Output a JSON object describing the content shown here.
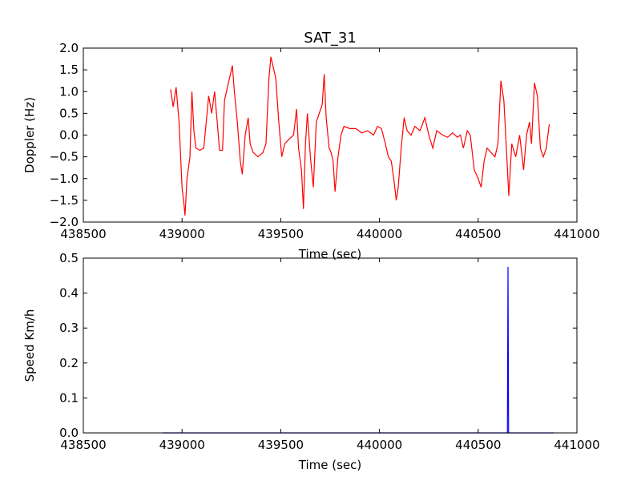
{
  "chart_data": [
    {
      "type": "line",
      "title": "SAT_31",
      "xlabel": "Time (sec)",
      "ylabel": "Doppler (Hz)",
      "color": "#ff0000",
      "x": [
        438942,
        438955,
        438970,
        438985,
        439000,
        439010,
        439015,
        439025,
        439040,
        439050,
        439060,
        439070,
        439090,
        439110,
        439135,
        439150,
        439165,
        439180,
        439190,
        439205,
        439215,
        439230,
        439245,
        439255,
        439265,
        439280,
        439295,
        439305,
        439320,
        439335,
        439345,
        439360,
        439385,
        439410,
        439425,
        439440,
        439450,
        439460,
        439475,
        439490,
        439505,
        439520,
        439540,
        439565,
        439580,
        439590,
        439605,
        439615,
        439625,
        439635,
        439650,
        439665,
        439680,
        439695,
        439710,
        439720,
        439730,
        439745,
        439755,
        439765,
        439775,
        439790,
        439805,
        439820,
        439850,
        439880,
        439910,
        439940,
        439970,
        439990,
        440010,
        440030,
        440045,
        440060,
        440075,
        440085,
        440095,
        440110,
        440125,
        440140,
        440160,
        440180,
        440205,
        440230,
        440250,
        440270,
        440290,
        440320,
        440345,
        440370,
        440395,
        440410,
        440425,
        440445,
        440460,
        440480,
        440500,
        440515,
        440530,
        440545,
        440565,
        440585,
        440600,
        440615,
        440630,
        440645,
        440655,
        440670,
        440690,
        440710,
        440730,
        440745,
        440760,
        440770,
        440785,
        440800,
        440815,
        440830,
        440845,
        440860
      ],
      "values": [
        1.05,
        0.65,
        1.1,
        0.3,
        -1.2,
        -1.6,
        -1.85,
        -1.0,
        -0.5,
        1.0,
        0.1,
        -0.3,
        -0.35,
        -0.3,
        0.9,
        0.5,
        1.0,
        0.2,
        -0.35,
        -0.35,
        0.8,
        1.1,
        1.4,
        1.6,
        1.0,
        0.3,
        -0.6,
        -0.9,
        0.0,
        0.4,
        -0.2,
        -0.4,
        -0.5,
        -0.4,
        -0.2,
        1.3,
        1.8,
        1.6,
        1.3,
        0.3,
        -0.5,
        -0.2,
        -0.1,
        0.0,
        0.6,
        -0.3,
        -0.8,
        -1.7,
        -0.2,
        0.5,
        -0.5,
        -1.2,
        0.3,
        0.5,
        0.7,
        1.4,
        0.4,
        -0.3,
        -0.4,
        -0.6,
        -1.3,
        -0.5,
        0.0,
        0.2,
        0.15,
        0.15,
        0.05,
        0.1,
        0.0,
        0.2,
        0.15,
        -0.2,
        -0.5,
        -0.6,
        -1.1,
        -1.5,
        -1.2,
        -0.3,
        0.4,
        0.1,
        0.0,
        0.2,
        0.1,
        0.4,
        0.0,
        -0.3,
        0.1,
        0.0,
        -0.05,
        0.05,
        -0.05,
        0.0,
        -0.3,
        0.1,
        0.0,
        -0.8,
        -1.0,
        -1.2,
        -0.6,
        -0.3,
        -0.4,
        -0.5,
        -0.2,
        1.25,
        0.8,
        -0.5,
        -1.4,
        -0.2,
        -0.5,
        0.0,
        -0.8,
        0.0,
        0.3,
        -0.2,
        1.2,
        0.9,
        -0.3,
        -0.5,
        -0.3,
        0.25
      ],
      "xlim": [
        438500,
        441000
      ],
      "xticks": [
        438500,
        439000,
        439500,
        440000,
        440500,
        441000
      ],
      "ylim": [
        -2,
        2
      ],
      "yticks": [
        {
          "value": -2,
          "label": "−2.0"
        },
        {
          "value": -1.5,
          "label": "−1.5"
        },
        {
          "value": -1,
          "label": "−1.0"
        },
        {
          "value": -0.5,
          "label": "−0.5"
        },
        {
          "value": 0,
          "label": "0.0"
        },
        0.5,
        {
          "value": 1,
          "label": "1.0"
        },
        1.5,
        {
          "value": 2,
          "label": "2.0"
        }
      ]
    },
    {
      "type": "line",
      "xlabel": "Time (sec)",
      "ylabel": "Speed Km/h",
      "color": "#0000ff",
      "x": [
        438902,
        440648,
        440651,
        440654,
        440882
      ],
      "values": [
        0,
        0,
        0.475,
        0,
        0
      ],
      "xlim": [
        438500,
        441000
      ],
      "xticks": [
        438500,
        439000,
        439500,
        440000,
        440500,
        441000
      ],
      "ylim": [
        0,
        0.5
      ],
      "yticks": [
        {
          "value": 0,
          "label": "0.0"
        },
        0.1,
        0.2,
        0.3,
        0.4,
        0.5
      ]
    }
  ]
}
